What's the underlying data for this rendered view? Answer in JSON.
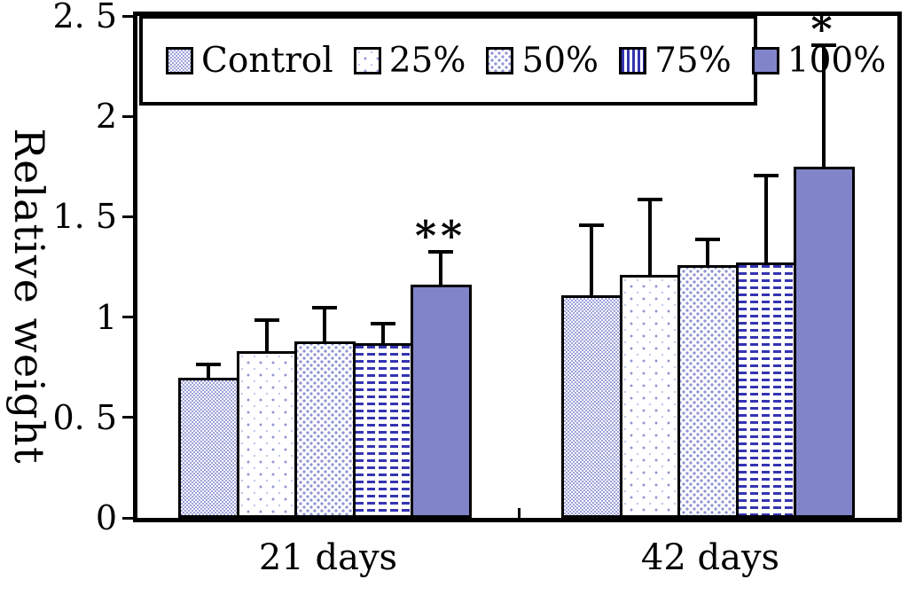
{
  "chart_data": {
    "type": "bar",
    "title": "",
    "ylabel": "Relative weight",
    "xlabel": "",
    "ylim": [
      0,
      2.5
    ],
    "ytick_values": [
      0,
      0.5,
      1,
      1.5,
      2,
      2.5
    ],
    "ytick_labels": [
      "0",
      "0. 5",
      "1",
      "1. 5",
      "2",
      "2. 5"
    ],
    "categories": [
      "21 days",
      "42 days"
    ],
    "series": [
      {
        "name": "Control",
        "pattern": "checker",
        "values": [
          0.7,
          1.11
        ],
        "errors": [
          0.07,
          0.35
        ]
      },
      {
        "name": "25%",
        "pattern": "dots-sparse",
        "values": [
          0.83,
          1.21
        ],
        "errors": [
          0.16,
          0.38
        ]
      },
      {
        "name": "50%",
        "pattern": "dots-dense",
        "values": [
          0.88,
          1.26
        ],
        "errors": [
          0.17,
          0.13
        ]
      },
      {
        "name": "75%",
        "pattern": "dashes",
        "legend_pattern": "stripes-vertical",
        "values": [
          0.87,
          1.27
        ],
        "errors": [
          0.1,
          0.44
        ]
      },
      {
        "name": "100%",
        "pattern": "solid",
        "values": [
          1.16,
          1.75
        ],
        "errors": [
          0.17,
          0.61
        ]
      }
    ],
    "annotations": [
      {
        "text": "**",
        "category": "21 days",
        "series": "100%"
      },
      {
        "text": "*",
        "category": "42 days",
        "series": "100%"
      }
    ],
    "legend_position": "top-left",
    "grid": false,
    "error_bars": "upper-only"
  },
  "colors": {
    "background": "#ffffff",
    "axis": "#000000",
    "bar_solid": "#8184c8",
    "pattern_ink": "#3434b2",
    "pattern_light": "#9ca1d9"
  }
}
